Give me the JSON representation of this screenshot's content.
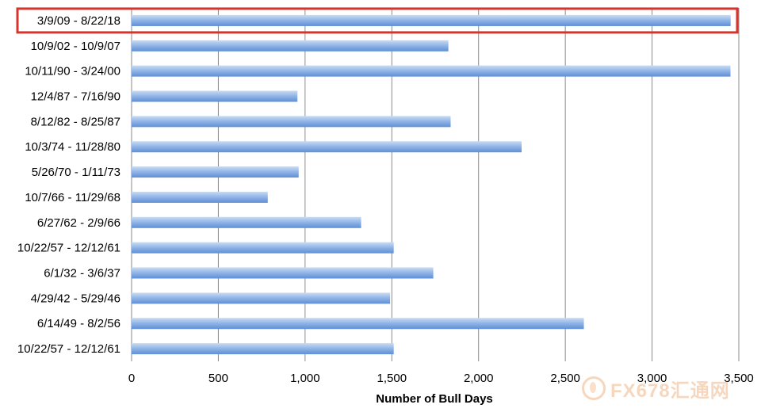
{
  "chart_data": {
    "type": "bar",
    "orientation": "horizontal",
    "categories": [
      "3/9/09 - 8/22/18",
      "10/9/02 - 10/9/07",
      "10/11/90 - 3/24/00",
      "12/4/87 - 7/16/90",
      "8/12/82 - 8/25/87",
      "10/3/74 - 11/28/80",
      "5/26/70 - 1/11/73",
      "10/7/66 - 11/29/68",
      "6/27/62 - 2/9/66",
      "10/22/57 - 12/12/61",
      "6/1/32 - 3/6/37",
      "4/29/42 - 5/29/46",
      "6/14/49 - 8/2/56",
      "10/22/57 - 12/12/61"
    ],
    "values": [
      3453,
      1826,
      3452,
      956,
      1839,
      2248,
      963,
      785,
      1323,
      1511,
      1739,
      1490,
      2607,
      1511
    ],
    "xlabel": "Number of Bull Days",
    "ylabel": "",
    "title": "",
    "xlim": [
      0,
      3500
    ],
    "xticks": [
      0,
      500,
      1000,
      1500,
      2000,
      2500,
      3000,
      3500
    ],
    "xtick_labels": [
      "0",
      "500",
      "1,000",
      "1,500",
      "2,000",
      "2,500",
      "3,000",
      "3,500"
    ],
    "grid": "vertical",
    "highlighted_category_index": 0,
    "colors": {
      "bar_top": "#c9dcf4",
      "bar_mid": "#8fb3e6",
      "bar_bottom": "#5e8fd6",
      "highlight": "#d9342b",
      "grid": "#8a8a8a"
    }
  },
  "watermark": {
    "text": "FX678汇通网",
    "icon": "fx678-logo-icon"
  }
}
